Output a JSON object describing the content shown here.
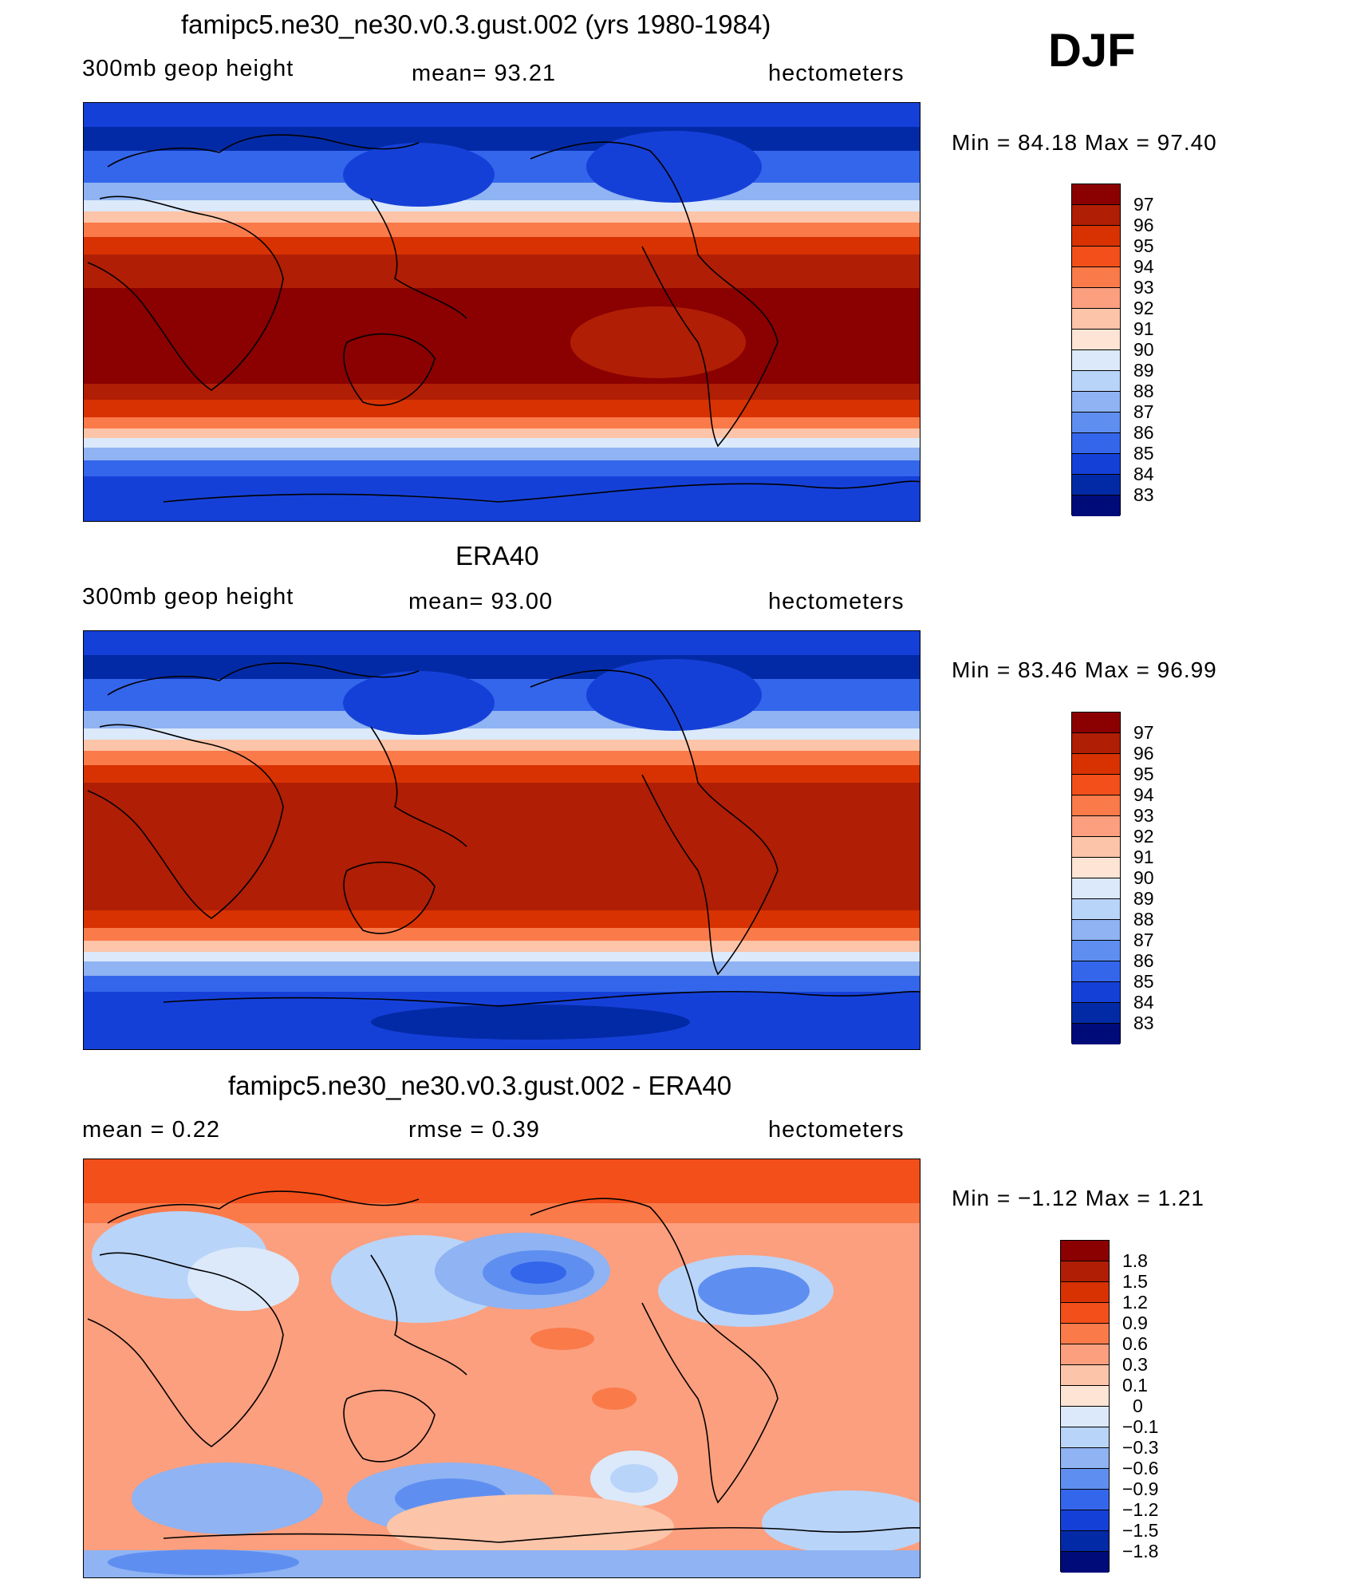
{
  "season": "DJF",
  "panels": [
    {
      "id": "model",
      "title": "famipc5.ne30_ne30.v0.3.gust.002 (yrs 1980-1984)",
      "left_label": "300mb  geop  height",
      "center_label": "mean=   93.21",
      "right_label": "hectometers",
      "minmax": "Min  =    84.18  Max  =    97.40",
      "levels": [
        "97",
        "96",
        "95",
        "94",
        "93",
        "92",
        "91",
        "90",
        "89",
        "88",
        "87",
        "86",
        "85",
        "84",
        "83"
      ],
      "colors": [
        "#8b0000",
        "#b01e05",
        "#d83202",
        "#f24f1a",
        "#fa7a4a",
        "#fc9f7e",
        "#fcc4a8",
        "#fde4d4",
        "#dbe9fb",
        "#b9d4f9",
        "#8fb3f3",
        "#5e8ff0",
        "#3466ec",
        "#1540d8",
        "#032aa6",
        "#000b7a"
      ]
    },
    {
      "id": "obs",
      "title": "ERA40",
      "left_label": "300mb  geop  height",
      "center_label": "mean=   93.00",
      "right_label": "hectometers",
      "minmax": "Min  =    83.46  Max  =    96.99",
      "levels": [
        "97",
        "96",
        "95",
        "94",
        "93",
        "92",
        "91",
        "90",
        "89",
        "88",
        "87",
        "86",
        "85",
        "84",
        "83"
      ],
      "colors": [
        "#8b0000",
        "#b01e05",
        "#d83202",
        "#f24f1a",
        "#fa7a4a",
        "#fc9f7e",
        "#fcc4a8",
        "#fde4d4",
        "#dbe9fb",
        "#b9d4f9",
        "#8fb3f3",
        "#5e8ff0",
        "#3466ec",
        "#1540d8",
        "#032aa6",
        "#000b7a"
      ]
    },
    {
      "id": "diff",
      "title": "famipc5.ne30_ne30.v0.3.gust.002 - ERA40",
      "left_label": "mean  =      0.22",
      "center_label": "rmse  =      0.39",
      "right_label": "hectometers",
      "minmax": "Min  =    −1.12  Max  =       1.21",
      "levels": [
        "1.8",
        "1.5",
        "1.2",
        "0.9",
        "0.6",
        "0.3",
        "0.1",
        "0",
        "−0.1",
        "−0.3",
        "−0.6",
        "−0.9",
        "−1.2",
        "−1.5",
        "−1.8"
      ],
      "colors": [
        "#8b0000",
        "#b01e05",
        "#d83202",
        "#f24f1a",
        "#fa7a4a",
        "#fc9f7e",
        "#fcc4a8",
        "#fde4d4",
        "#dbe9fb",
        "#b9d4f9",
        "#8fb3f3",
        "#5e8ff0",
        "#3466ec",
        "#1540d8",
        "#032aa6",
        "#000b7a"
      ]
    }
  ]
}
